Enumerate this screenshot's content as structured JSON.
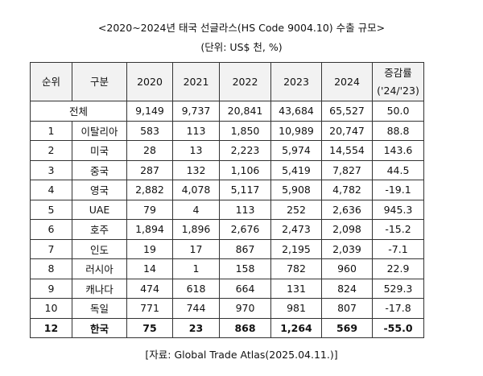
{
  "title": "<2020~2024년 태국 선글라스(HS Code 9004.10) 수출 규모>",
  "unit": "(단위: US$ 천, %)",
  "headers": [
    "순위",
    "구분",
    "2020",
    "2021",
    "2022",
    "2023",
    "2024",
    "증감률",
    "('24/'23)"
  ],
  "total": {
    "label": "전체",
    "values": [
      "9,149",
      "9,737",
      "20,841",
      "43,684",
      "65,527",
      "50.0"
    ]
  },
  "rows": [
    {
      "rank": "1",
      "name": "이탈리아",
      "values": [
        "583",
        "113",
        "1,850",
        "10,989",
        "20,747",
        "88.8"
      ]
    },
    {
      "rank": "2",
      "name": "미국",
      "values": [
        "28",
        "13",
        "2,223",
        "5,974",
        "14,554",
        "143.6"
      ]
    },
    {
      "rank": "3",
      "name": "중국",
      "values": [
        "287",
        "132",
        "1,106",
        "5,419",
        "7,827",
        "44.5"
      ]
    },
    {
      "rank": "4",
      "name": "영국",
      "values": [
        "2,882",
        "4,078",
        "5,117",
        "5,908",
        "4,782",
        "-19.1"
      ]
    },
    {
      "rank": "5",
      "name": "UAE",
      "values": [
        "79",
        "4",
        "113",
        "252",
        "2,636",
        "945.3"
      ]
    },
    {
      "rank": "6",
      "name": "호주",
      "values": [
        "1,894",
        "1,896",
        "2,676",
        "2,473",
        "2,098",
        "-15.2"
      ]
    },
    {
      "rank": "7",
      "name": "인도",
      "values": [
        "19",
        "17",
        "867",
        "2,195",
        "2,039",
        "-7.1"
      ]
    },
    {
      "rank": "8",
      "name": "러시아",
      "values": [
        "14",
        "1",
        "158",
        "782",
        "960",
        "22.9"
      ]
    },
    {
      "rank": "9",
      "name": "캐나다",
      "values": [
        "474",
        "618",
        "664",
        "131",
        "824",
        "529.3"
      ]
    },
    {
      "rank": "10",
      "name": "독일",
      "values": [
        "771",
        "744",
        "970",
        "981",
        "807",
        "-17.8"
      ]
    },
    {
      "rank": "12",
      "name": "한국",
      "values": [
        "75",
        "23",
        "868",
        "1,264",
        "569",
        "-55.0"
      ],
      "bold": true
    }
  ],
  "source": "[자료: Global Trade Atlas(2025.04.11.)]"
}
